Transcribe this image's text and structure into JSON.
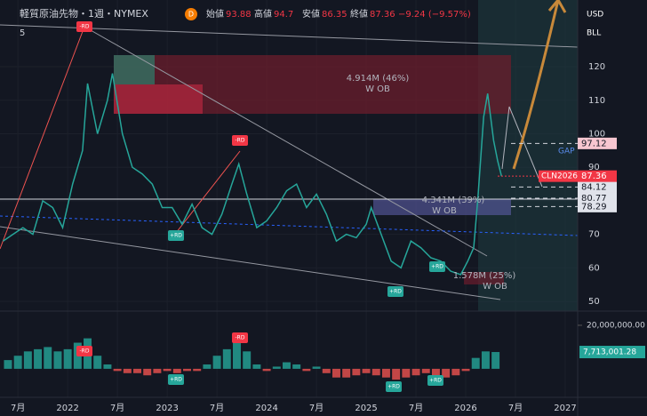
{
  "chart_data": [
    {
      "type": "line",
      "title": "軽質原油先物・1週・NYMEX",
      "interval_badge": "D",
      "indicator_count": "5",
      "ohlc": [
        {
          "name": "始値",
          "value": 93.88
        },
        {
          "name": "高値",
          "value": 94.7
        },
        {
          "name": "安値",
          "value": 86.35
        },
        {
          "name": "終値",
          "value": 87.36
        }
      ],
      "change": "−9.24 (−9.57%)",
      "currency": "USD",
      "unit": "BLL",
      "symbol": "CLN2026",
      "last_price": 87.36,
      "levels": [
        97.12,
        84.12,
        80.77,
        78.29
      ],
      "annotations": [
        "4.914M (46%)",
        "W OB",
        "4.341M (39%)",
        "W OB",
        "1.578M (25%)",
        "W OB",
        "GAP"
      ],
      "rd_labels": [
        "-RD",
        "+RD"
      ],
      "series": [
        {
          "name": "CLN2026",
          "color": "#26a69a",
          "x": [
            2021.35,
            2021.45,
            2021.55,
            2021.65,
            2021.75,
            2021.85,
            2021.95,
            2022.05,
            2022.15,
            2022.2,
            2022.3,
            2022.4,
            2022.45,
            2022.55,
            2022.65,
            2022.75,
            2022.85,
            2022.95,
            2023.05,
            2023.15,
            2023.25,
            2023.35,
            2023.45,
            2023.55,
            2023.65,
            2023.72,
            2023.8,
            2023.9,
            2024.0,
            2024.1,
            2024.2,
            2024.3,
            2024.4,
            2024.5,
            2024.6,
            2024.7,
            2024.8,
            2024.9,
            2025.0,
            2025.05,
            2025.15,
            2025.25,
            2025.35,
            2025.45,
            2025.55,
            2025.65,
            2025.75,
            2025.85,
            2025.95,
            2026.02,
            2026.08,
            2026.12,
            2026.18,
            2026.22,
            2026.28,
            2026.32,
            2026.36
          ],
          "values": [
            68,
            70,
            72,
            70,
            80,
            78,
            72,
            85,
            95,
            115,
            100,
            110,
            118,
            100,
            90,
            88,
            85,
            78,
            78,
            73,
            79,
            72,
            70,
            76,
            85,
            91,
            82,
            72,
            74,
            78,
            83,
            85,
            78,
            82,
            76,
            68,
            70,
            69,
            73,
            78,
            70,
            62,
            60,
            68,
            66,
            63,
            62,
            59,
            58,
            62,
            66,
            80,
            105,
            112,
            98,
            92,
            87.36
          ]
        }
      ],
      "xlim": [
        2021.32,
        2027.125
      ],
      "xticks": [
        {
          "value": 2021.5,
          "label": "7月"
        },
        2022,
        {
          "value": 2022.5,
          "label": "7月"
        },
        2023,
        {
          "value": 2023.5,
          "label": "7月"
        },
        2024,
        {
          "value": 2024.5,
          "label": "7月"
        },
        2025,
        {
          "value": 2025.5,
          "label": "7月"
        },
        2026,
        {
          "value": 2026.5,
          "label": "7月"
        },
        2027
      ],
      "ylim": [
        47.1,
        139.9
      ],
      "yticks": [
        50,
        60,
        70,
        80,
        90,
        100,
        110,
        120
      ],
      "grid": true
    },
    {
      "type": "bar",
      "pos_color": "#26a69a",
      "neg_color": "#ef5350",
      "x": [
        2021.4,
        2021.5,
        2021.6,
        2021.7,
        2021.8,
        2021.9,
        2022.0,
        2022.1,
        2022.2,
        2022.3,
        2022.4,
        2022.5,
        2022.6,
        2022.7,
        2022.8,
        2022.9,
        2023.0,
        2023.1,
        2023.2,
        2023.3,
        2023.4,
        2023.5,
        2023.6,
        2023.7,
        2023.8,
        2023.9,
        2024.0,
        2024.1,
        2024.2,
        2024.3,
        2024.4,
        2024.5,
        2024.6,
        2024.7,
        2024.8,
        2024.9,
        2025.0,
        2025.1,
        2025.2,
        2025.3,
        2025.4,
        2025.5,
        2025.6,
        2025.7,
        2025.8,
        2025.9,
        2026.0,
        2026.1,
        2026.2,
        2026.3
      ],
      "values": [
        4000000,
        6000000,
        8000000,
        9000000,
        10000000,
        8000000,
        9000000,
        12000000,
        14000000,
        6000000,
        2000000,
        -1000000,
        -2000000,
        -2000000,
        -3000000,
        -2000000,
        -1000000,
        -2000000,
        -1000000,
        -1000000,
        2000000,
        6000000,
        9000000,
        12000000,
        8000000,
        2000000,
        -1000000,
        1000000,
        3000000,
        2000000,
        -1000000,
        1000000,
        -2000000,
        -4000000,
        -4000000,
        -3000000,
        -2000000,
        -3000000,
        -4000000,
        -5000000,
        -4000000,
        -3000000,
        -2000000,
        -3000000,
        -4000000,
        -3000000,
        -1000000,
        5000000,
        8000000,
        7713001.28
      ],
      "value_labels": [
        null,
        null,
        null,
        null,
        null,
        null,
        null,
        null,
        null,
        null,
        null,
        null,
        null,
        null,
        null,
        null,
        null,
        null,
        null,
        null,
        null,
        null,
        null,
        null,
        null,
        null,
        null,
        null,
        null,
        null,
        null,
        null,
        null,
        null,
        null,
        null,
        null,
        null,
        null,
        null,
        null,
        null,
        null,
        null,
        null,
        null,
        null,
        null,
        null,
        "7,713,001.28"
      ],
      "ylim": [
        -12300000,
        25700000
      ],
      "yticks": [
        {
          "value": 20000000,
          "label": "20,000,000.00"
        }
      ]
    }
  ]
}
